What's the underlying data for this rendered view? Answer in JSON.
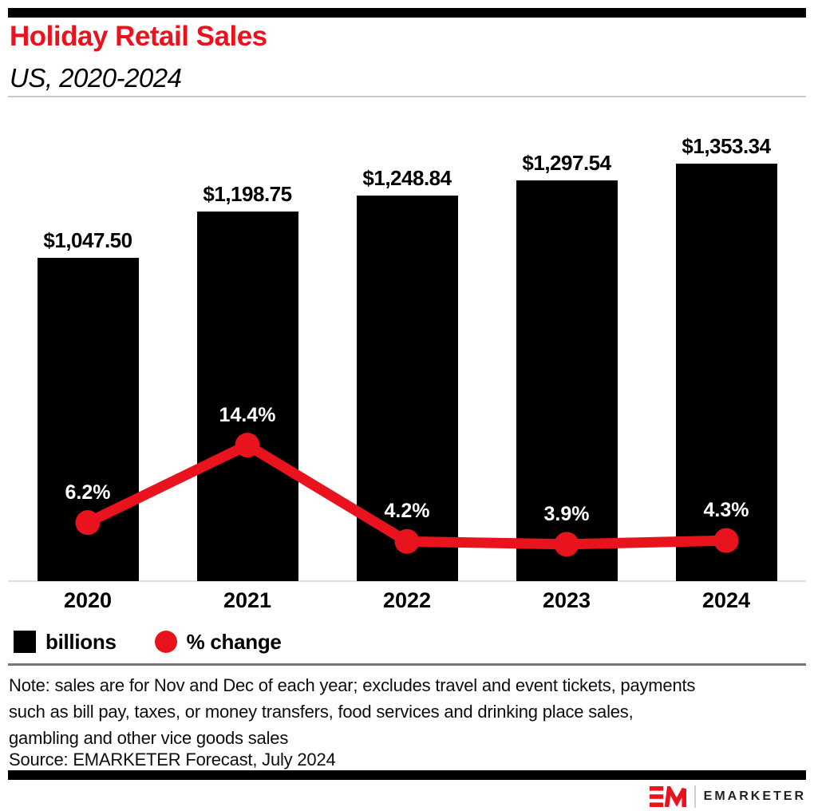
{
  "header": {
    "title": "Holiday Retail Sales",
    "subtitle": "US, 2020-2024"
  },
  "chart_data": {
    "type": "bar",
    "categories": [
      "2020",
      "2021",
      "2022",
      "2023",
      "2024"
    ],
    "series": [
      {
        "name": "billions",
        "type": "bar",
        "values": [
          1047.5,
          1198.75,
          1248.84,
          1297.54,
          1353.34
        ],
        "labels": [
          "$1,047.50",
          "$1,198.75",
          "$1,248.84",
          "$1,297.54",
          "$1,353.34"
        ],
        "color": "#000000",
        "unit": "billions of US dollars"
      },
      {
        "name": "% change",
        "type": "line",
        "values": [
          6.2,
          14.4,
          4.2,
          3.9,
          4.3
        ],
        "labels": [
          "6.2%",
          "14.4%",
          "4.2%",
          "3.9%",
          "4.3%"
        ],
        "color": "#e8131d"
      }
    ],
    "title": "Holiday Retail Sales",
    "subtitle": "US, 2020-2024",
    "xlabel": "",
    "ylabel": "",
    "grid": false,
    "legend_position": "bottom-left"
  },
  "legend": {
    "items": [
      {
        "label": "billions",
        "swatch": "square",
        "color": "#000000"
      },
      {
        "label": "% change",
        "swatch": "circle",
        "color": "#e8131d"
      }
    ]
  },
  "footnote": {
    "note_lines": [
      "Note: sales are for Nov and Dec of each year; excludes travel and event tickets, payments",
      "such as bill pay, taxes, or money transfers, food services and drinking place sales,",
      "gambling and other vice goods sales"
    ],
    "source": "Source: EMARKETER Forecast, July 2024"
  },
  "footer": {
    "brand": "EMARKETER",
    "logo": "em-monogram-icon"
  },
  "colors": {
    "accent_red": "#e8131d",
    "bar_black": "#000000",
    "rule_light": "#c9c9c9",
    "rule_dark": "#757575",
    "axis_line": "#dedede"
  }
}
